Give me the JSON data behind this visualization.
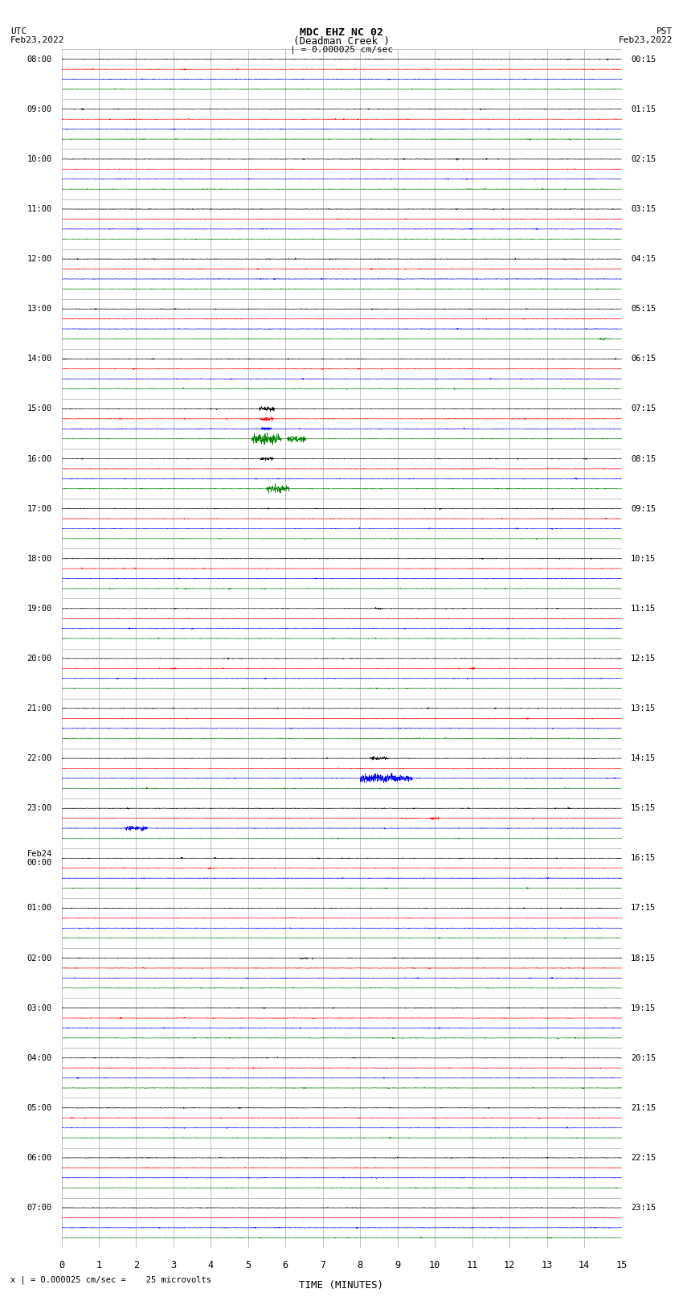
{
  "title_line1": "MDC EHZ NC 02",
  "title_line2": "(Deadman Creek )",
  "title_line3": "| = 0.000025 cm/sec",
  "left_label_line1": "UTC",
  "left_label_line2": "Feb23,2022",
  "right_label_line1": "PST",
  "right_label_line2": "Feb23,2022",
  "bottom_label": "TIME (MINUTES)",
  "scale_label": "x | = 0.000025 cm/sec =    25 microvolts",
  "utc_labels": [
    "08:00",
    "09:00",
    "10:00",
    "11:00",
    "12:00",
    "13:00",
    "14:00",
    "15:00",
    "16:00",
    "17:00",
    "18:00",
    "19:00",
    "20:00",
    "21:00",
    "22:00",
    "23:00",
    "Feb24\n00:00",
    "01:00",
    "02:00",
    "03:00",
    "04:00",
    "05:00",
    "06:00",
    "07:00"
  ],
  "pst_labels": [
    "00:15",
    "01:15",
    "02:15",
    "03:15",
    "04:15",
    "05:15",
    "06:15",
    "07:15",
    "08:15",
    "09:15",
    "10:15",
    "11:15",
    "12:15",
    "13:15",
    "14:15",
    "15:15",
    "16:15",
    "17:15",
    "18:15",
    "19:15",
    "20:15",
    "21:15",
    "22:15",
    "23:15"
  ],
  "n_rows": 24,
  "n_traces_per_row": 4,
  "trace_colors": [
    "black",
    "red",
    "blue",
    "green"
  ],
  "background_color": "white",
  "grid_color": "#aaaaaa",
  "x_min": 0,
  "x_max": 15,
  "fig_width": 8.5,
  "fig_height": 16.13,
  "noise_std": 0.012,
  "trace_amplitude_scale": 0.18,
  "eq_row_green_spike": 7,
  "eq_row_green_spike2": 8,
  "eq_row_blue_spike": 14,
  "eq_row_blue_spike2": 15,
  "eq_minute_green": 5.5,
  "eq_minute_blue": 8.5
}
